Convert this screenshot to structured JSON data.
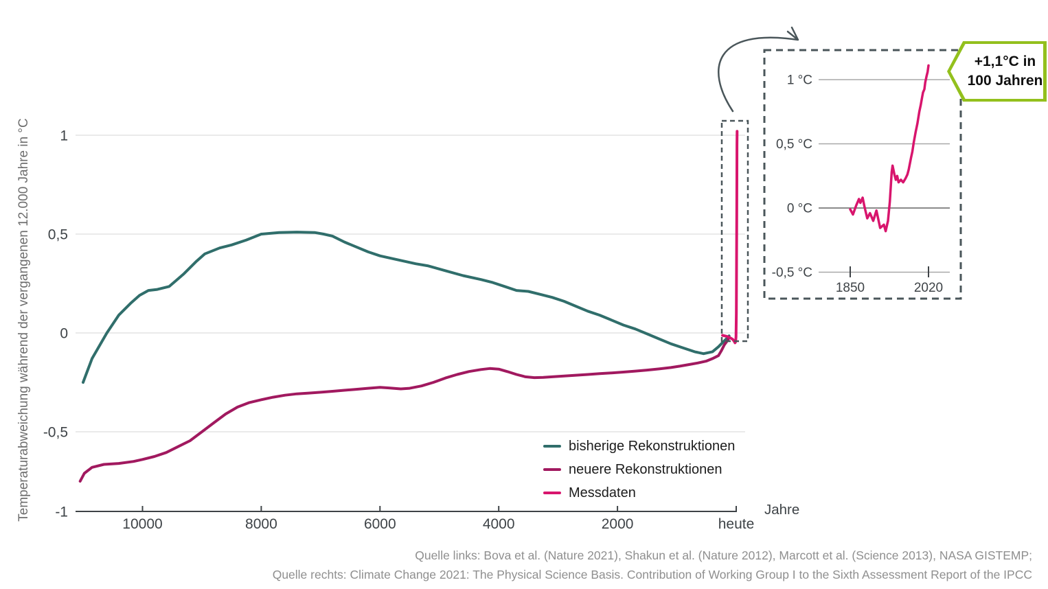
{
  "callout": {
    "line1": "+1,1°C in",
    "line2": "100 Jahren"
  },
  "sources": {
    "line1": "Quelle links: Bova et al. (Nature 2021), Shakun et al. (Nature 2012), Marcott et al. (Science 2013), NASA GISTEMP;",
    "line2": "Quelle rechts: Climate Change 2021: The Physical Science Basis. Contribution of Working Group I to the Sixth Assessment Report of the IPCC"
  },
  "colors": {
    "teal": "#306e6b",
    "dark_magenta": "#a1195f",
    "pink": "#d8156d",
    "grid_main": "#e3e3e3",
    "grid_inset": "#a8a8a8",
    "grid_inset_zero": "#8a8a8a",
    "axis": "#3e4347",
    "dashed_annotation": "#4a565a",
    "callout_green": "#93c01d",
    "muted_text": "#8f8f8f",
    "ylabel_text": "#6e6e6e"
  },
  "chart_data": [
    {
      "id": "main",
      "type": "line",
      "title": "",
      "xlabel": "Jahre",
      "ylabel": "Temperaturabweichung während der vergangenen 12.000 Jahre in °C",
      "x_unit": "Jahre vor heute",
      "xlim": [
        11130,
        -150
      ],
      "ylim": [
        -1,
        1.1
      ],
      "grid": true,
      "yticks": [
        {
          "value": 1,
          "label": "1"
        },
        {
          "value": 0.5,
          "label": "0,5"
        },
        {
          "value": 0,
          "label": "0"
        },
        {
          "value": -0.5,
          "label": "-0,5"
        },
        {
          "value": -1,
          "label": "-1",
          "axis": true
        }
      ],
      "xticks": [
        {
          "value": 10000,
          "label": "10000"
        },
        {
          "value": 8000,
          "label": "8000"
        },
        {
          "value": 6000,
          "label": "6000"
        },
        {
          "value": 4000,
          "label": "4000"
        },
        {
          "value": 2000,
          "label": "2000"
        },
        {
          "value": 0,
          "label": "heute"
        }
      ],
      "series": [
        {
          "name": "bisherige Rekonstruktionen",
          "color": "#306e6b",
          "points": [
            [
              11000,
              -0.25
            ],
            [
              10850,
              -0.13
            ],
            [
              10600,
              0.0
            ],
            [
              10400,
              0.09
            ],
            [
              10200,
              0.15
            ],
            [
              10050,
              0.19
            ],
            [
              9900,
              0.215
            ],
            [
              9750,
              0.22
            ],
            [
              9550,
              0.235
            ],
            [
              9300,
              0.3
            ],
            [
              9100,
              0.36
            ],
            [
              8950,
              0.4
            ],
            [
              8700,
              0.43
            ],
            [
              8500,
              0.445
            ],
            [
              8250,
              0.47
            ],
            [
              8000,
              0.5
            ],
            [
              7700,
              0.508
            ],
            [
              7400,
              0.51
            ],
            [
              7100,
              0.508
            ],
            [
              6950,
              0.5
            ],
            [
              6800,
              0.49
            ],
            [
              6600,
              0.46
            ],
            [
              6400,
              0.435
            ],
            [
              6200,
              0.41
            ],
            [
              6000,
              0.39
            ],
            [
              5700,
              0.37
            ],
            [
              5400,
              0.35
            ],
            [
              5200,
              0.34
            ],
            [
              4900,
              0.315
            ],
            [
              4600,
              0.29
            ],
            [
              4300,
              0.27
            ],
            [
              4100,
              0.255
            ],
            [
              3900,
              0.235
            ],
            [
              3700,
              0.215
            ],
            [
              3500,
              0.21
            ],
            [
              3300,
              0.195
            ],
            [
              3100,
              0.18
            ],
            [
              2900,
              0.16
            ],
            [
              2700,
              0.135
            ],
            [
              2500,
              0.11
            ],
            [
              2300,
              0.09
            ],
            [
              2100,
              0.065
            ],
            [
              1900,
              0.04
            ],
            [
              1700,
              0.02
            ],
            [
              1500,
              -0.005
            ],
            [
              1300,
              -0.03
            ],
            [
              1100,
              -0.055
            ],
            [
              900,
              -0.075
            ],
            [
              700,
              -0.095
            ],
            [
              550,
              -0.105
            ],
            [
              400,
              -0.095
            ],
            [
              300,
              -0.07
            ],
            [
              250,
              -0.055
            ],
            [
              200,
              -0.04
            ],
            [
              150,
              -0.025
            ],
            [
              120,
              -0.015
            ]
          ]
        },
        {
          "name": "neuere Rekonstruktionen",
          "color": "#a1195f",
          "points": [
            [
              11050,
              -0.75
            ],
            [
              10980,
              -0.71
            ],
            [
              10850,
              -0.68
            ],
            [
              10650,
              -0.665
            ],
            [
              10400,
              -0.66
            ],
            [
              10150,
              -0.65
            ],
            [
              10000,
              -0.64
            ],
            [
              9800,
              -0.625
            ],
            [
              9600,
              -0.605
            ],
            [
              9400,
              -0.575
            ],
            [
              9200,
              -0.545
            ],
            [
              9000,
              -0.5
            ],
            [
              8800,
              -0.455
            ],
            [
              8600,
              -0.41
            ],
            [
              8400,
              -0.375
            ],
            [
              8200,
              -0.352
            ],
            [
              8000,
              -0.338
            ],
            [
              7800,
              -0.325
            ],
            [
              7600,
              -0.315
            ],
            [
              7400,
              -0.308
            ],
            [
              7200,
              -0.304
            ],
            [
              7000,
              -0.3
            ],
            [
              6800,
              -0.295
            ],
            [
              6600,
              -0.29
            ],
            [
              6400,
              -0.285
            ],
            [
              6200,
              -0.28
            ],
            [
              6000,
              -0.275
            ],
            [
              5850,
              -0.278
            ],
            [
              5650,
              -0.283
            ],
            [
              5500,
              -0.28
            ],
            [
              5300,
              -0.268
            ],
            [
              5100,
              -0.25
            ],
            [
              4900,
              -0.228
            ],
            [
              4700,
              -0.21
            ],
            [
              4500,
              -0.195
            ],
            [
              4300,
              -0.185
            ],
            [
              4150,
              -0.18
            ],
            [
              4000,
              -0.183
            ],
            [
              3850,
              -0.196
            ],
            [
              3700,
              -0.21
            ],
            [
              3550,
              -0.222
            ],
            [
              3400,
              -0.226
            ],
            [
              3250,
              -0.225
            ],
            [
              3100,
              -0.222
            ],
            [
              2900,
              -0.218
            ],
            [
              2700,
              -0.214
            ],
            [
              2500,
              -0.21
            ],
            [
              2300,
              -0.206
            ],
            [
              2100,
              -0.202
            ],
            [
              1900,
              -0.198
            ],
            [
              1700,
              -0.193
            ],
            [
              1500,
              -0.188
            ],
            [
              1300,
              -0.182
            ],
            [
              1100,
              -0.175
            ],
            [
              950,
              -0.168
            ],
            [
              800,
              -0.16
            ],
            [
              650,
              -0.152
            ],
            [
              500,
              -0.142
            ],
            [
              400,
              -0.13
            ],
            [
              300,
              -0.115
            ],
            [
              250,
              -0.09
            ],
            [
              200,
              -0.06
            ],
            [
              150,
              -0.04
            ],
            [
              120,
              -0.025
            ]
          ]
        },
        {
          "name": "Messdaten",
          "color": "#d8156d",
          "points": [
            [
              230,
              -0.012
            ],
            [
              150,
              -0.018
            ],
            [
              100,
              -0.025
            ],
            [
              60,
              -0.032
            ],
            [
              35,
              -0.042
            ],
            [
              20,
              -0.05
            ],
            [
              10,
              -0.045
            ],
            [
              3,
              -0.02
            ],
            [
              -2,
              0.1
            ],
            [
              -6,
              0.35
            ],
            [
              -9,
              0.6
            ],
            [
              -11,
              0.8
            ],
            [
              -13,
              0.95
            ],
            [
              -14.5,
              1.02
            ]
          ]
        }
      ],
      "annotations": {
        "highlight_box": "dashed box around recent measurement spike",
        "arrow": "curved arrow from spike to inset"
      }
    },
    {
      "id": "inset",
      "type": "line",
      "title": "",
      "xlabel": "",
      "ylabel": "",
      "xlim": [
        1843,
        2028
      ],
      "ylim": [
        -0.62,
        1.22
      ],
      "grid": true,
      "yticks": [
        {
          "value": 1,
          "label": "1 °C"
        },
        {
          "value": 0.5,
          "label": "0,5 °C"
        },
        {
          "value": 0,
          "label": "0 °C",
          "emphasis": true
        },
        {
          "value": -0.5,
          "label": "-0,5 °C"
        }
      ],
      "xticks": [
        {
          "value": 1850,
          "label": "1850"
        },
        {
          "value": 2020,
          "label": "2020"
        }
      ],
      "series": [
        {
          "name": "Messdaten",
          "color": "#d8156d",
          "points": [
            [
              1850,
              -0.01
            ],
            [
              1856,
              -0.05
            ],
            [
              1863,
              0.02
            ],
            [
              1869,
              0.07
            ],
            [
              1872,
              0.04
            ],
            [
              1877,
              0.08
            ],
            [
              1881,
              0.01
            ],
            [
              1887,
              -0.08
            ],
            [
              1893,
              -0.04
            ],
            [
              1900,
              -0.1
            ],
            [
              1907,
              -0.02
            ],
            [
              1915,
              -0.155
            ],
            [
              1923,
              -0.13
            ],
            [
              1927,
              -0.18
            ],
            [
              1932,
              -0.1
            ],
            [
              1936,
              0.05
            ],
            [
              1940,
              0.28
            ],
            [
              1942,
              0.33
            ],
            [
              1946,
              0.26
            ],
            [
              1949,
              0.22
            ],
            [
              1952,
              0.25
            ],
            [
              1955,
              0.2
            ],
            [
              1960,
              0.22
            ],
            [
              1965,
              0.2
            ],
            [
              1970,
              0.23
            ],
            [
              1974,
              0.26
            ],
            [
              1977,
              0.3
            ],
            [
              1982,
              0.39
            ],
            [
              1985,
              0.44
            ],
            [
              1988,
              0.51
            ],
            [
              1992,
              0.59
            ],
            [
              1996,
              0.66
            ],
            [
              2000,
              0.75
            ],
            [
              2003,
              0.8
            ],
            [
              2006,
              0.86
            ],
            [
              2008,
              0.9
            ],
            [
              2011,
              0.925
            ],
            [
              2013,
              0.98
            ],
            [
              2016,
              1.03
            ],
            [
              2018,
              1.06
            ],
            [
              2020,
              1.11
            ]
          ]
        }
      ],
      "annotation": "+1,1°C in 100 Jahren"
    }
  ]
}
